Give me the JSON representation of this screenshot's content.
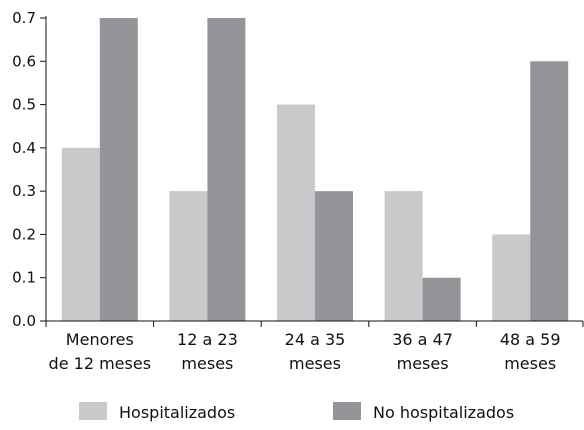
{
  "chart_data": {
    "type": "bar",
    "categories": [
      [
        "Menores",
        "de 12 meses"
      ],
      [
        "12 a 23",
        "meses"
      ],
      [
        "24 a 35",
        "meses"
      ],
      [
        "36 a 47",
        "meses"
      ],
      [
        "48 a 59",
        "meses"
      ]
    ],
    "series": [
      {
        "name": "Hospitalizados",
        "color": "#c8c9cb",
        "values": [
          0.4,
          0.3,
          0.5,
          0.3,
          0.2
        ]
      },
      {
        "name": "No hospitalizados",
        "color": "#939598",
        "values": [
          0.7,
          0.7,
          0.3,
          0.1,
          0.6
        ]
      }
    ],
    "yticks": [
      "0.0",
      "0.1",
      "0.2",
      "0.3",
      "0.4",
      "0.5",
      "0.6",
      "0.7"
    ],
    "ylim": [
      0,
      0.7
    ],
    "grid": false,
    "legend_position": "bottom",
    "title": "",
    "xlabel": "",
    "ylabel": ""
  }
}
